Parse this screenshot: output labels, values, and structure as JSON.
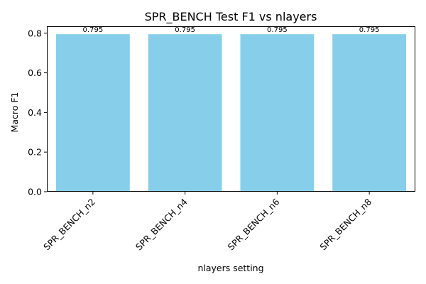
{
  "chart_data": {
    "type": "bar",
    "title": "SPR_BENCH Test F1 vs nlayers",
    "xlabel": "nlayers setting",
    "ylabel": "Macro F1",
    "categories": [
      "SPR_BENCH_n2",
      "SPR_BENCH_n4",
      "SPR_BENCH_n6",
      "SPR_BENCH_n8"
    ],
    "values": [
      0.795,
      0.795,
      0.795,
      0.795
    ],
    "data_labels": [
      "0.795",
      "0.795",
      "0.795",
      "0.795"
    ],
    "ylim": [
      0,
      0.835
    ],
    "yticks": [
      0.0,
      0.2,
      0.4,
      0.6,
      0.8
    ],
    "ytick_labels": [
      "0.0",
      "0.2",
      "0.4",
      "0.6",
      "0.8"
    ],
    "grid": false,
    "legend": "none",
    "colors": {
      "bar": "#87ceeb",
      "axis": "#000000"
    }
  }
}
